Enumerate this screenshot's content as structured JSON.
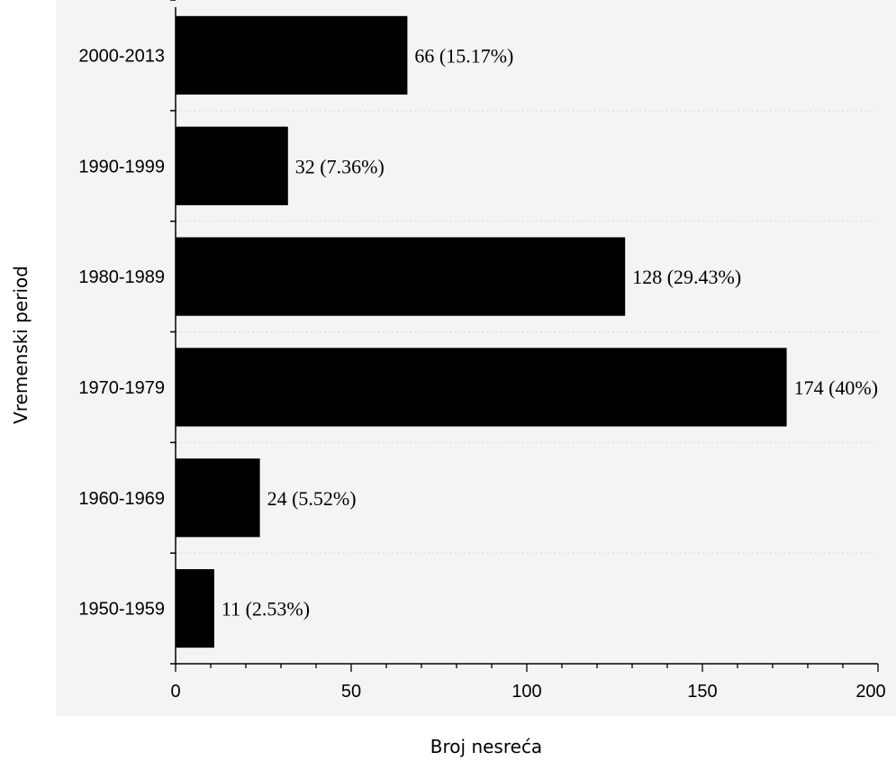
{
  "chart_data": {
    "type": "bar",
    "orientation": "horizontal",
    "title": "",
    "xlabel": "Broj nesreća",
    "ylabel": "Vremenski period",
    "xlim": [
      0,
      200
    ],
    "x_ticks": [
      "0",
      "50",
      "100",
      "150",
      "200"
    ],
    "categories": [
      "1950-1959",
      "1960-1969",
      "1970-1979",
      "1980-1989",
      "1990-1999",
      "2000-2013"
    ],
    "values": [
      11,
      24,
      174,
      128,
      32,
      66
    ],
    "data_labels": [
      "11 (2.53%)",
      "24 (5.52%)",
      "174 (40%)",
      "128 (29.43%)",
      "32 (7.36%)",
      "66 (15.17%)"
    ],
    "grid": "horizontal dotted separators",
    "legend": "none",
    "colors": {
      "bar": "#000000",
      "plot_background": "#f4f4f4",
      "grid": "#d8d8d8"
    }
  }
}
